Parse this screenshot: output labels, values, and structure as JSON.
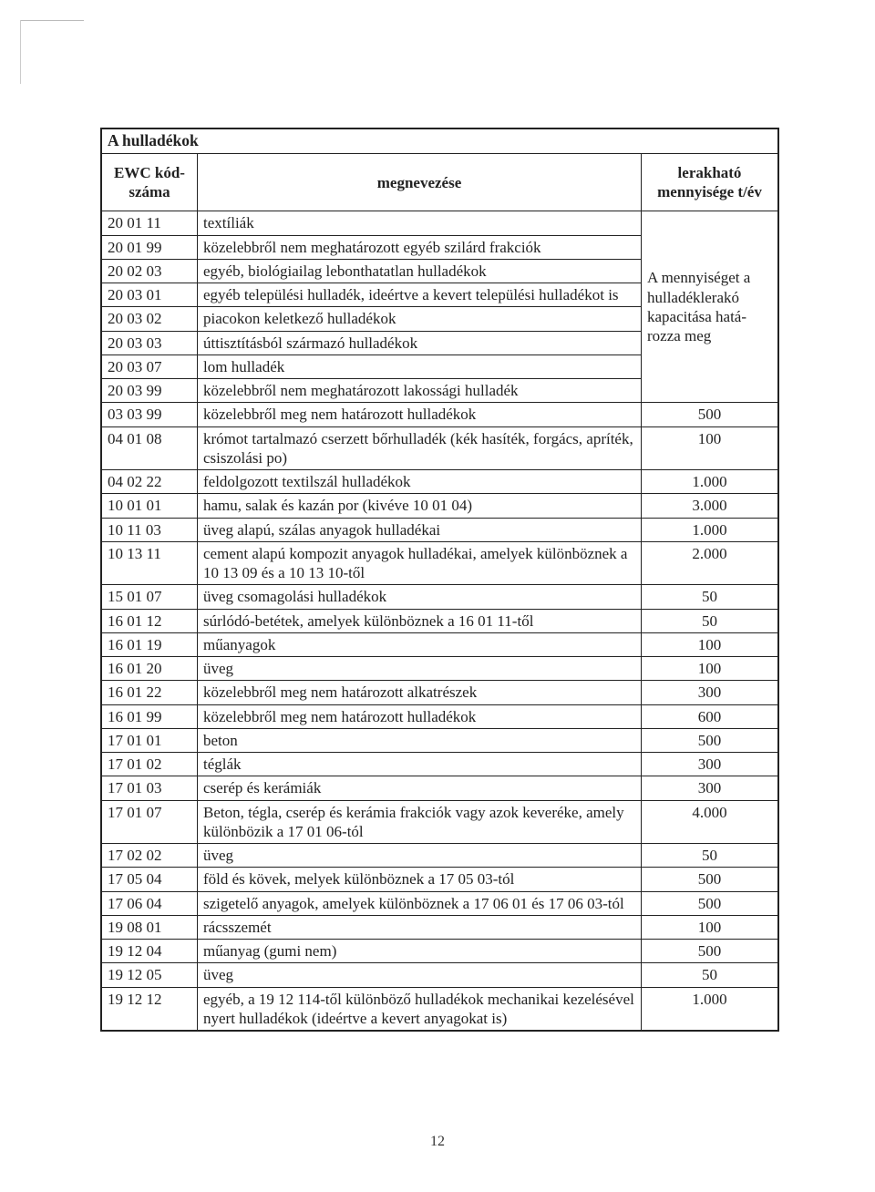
{
  "page_number": "12",
  "title": "A hulladékok",
  "headers": {
    "col1_line1": "EWC kód-",
    "col1_line2": "száma",
    "col2": "megnevezése",
    "col3_line1": "lerakható",
    "col3_line2": "mennyisége t/év"
  },
  "capacity_note": {
    "l1": "A mennyiséget a",
    "l2": "hulladéklerakó",
    "l3": "kapacitása hatá-",
    "l4": "rozza meg"
  },
  "top_rows": [
    {
      "code": "20 01 11",
      "name": "textíliák"
    },
    {
      "code": "20 01 99",
      "name": "közelebbről nem meghatározott egyéb szilárd frakciók"
    },
    {
      "code": "20 02 03",
      "name": "egyéb, biológiailag lebonthatatlan hulladékok"
    },
    {
      "code": "20 03 01",
      "name": "egyéb települési hulladék, ideértve a kevert települési hulladékot is"
    },
    {
      "code": "20 03 02",
      "name": "piacokon keletkező hulladékok"
    },
    {
      "code": "20 03 03",
      "name": "úttisztításból származó hulladékok"
    },
    {
      "code": "20 03 07",
      "name": "lom hulladék"
    },
    {
      "code": "20 03 99",
      "name": "közelebbről nem meghatározott lakossági hulladék"
    }
  ],
  "rows": [
    {
      "code": "03 03 99",
      "name": "közelebbről meg nem határozott hulladékok",
      "val": "500"
    },
    {
      "code": "04 01 08",
      "name": "krómot tartalmazó cserzett bőrhulladék (kék hasíték, forgács, apríték, csiszolási po)",
      "val": "100"
    },
    {
      "code": "04 02 22",
      "name": "feldolgozott textilszál hulladékok",
      "val": "1.000"
    },
    {
      "code": "10 01 01",
      "name": "hamu, salak és kazán por (kivéve 10 01 04)",
      "val": "3.000"
    },
    {
      "code": "10 11 03",
      "name": "üveg alapú, szálas anyagok hulladékai",
      "val": "1.000"
    },
    {
      "code": "10 13 11",
      "name": "cement alapú kompozit anyagok hulladékai, amelyek különböznek a 10 13 09 és a 10 13 10-től",
      "val": "2.000"
    },
    {
      "code": "15 01 07",
      "name": "üveg csomagolási hulladékok",
      "val": "50"
    },
    {
      "code": "16 01 12",
      "name": "súrlódó-betétek, amelyek különböznek a 16 01 11-től",
      "val": "50"
    },
    {
      "code": "16 01 19",
      "name": "műanyagok",
      "val": "100"
    },
    {
      "code": "16 01 20",
      "name": "üveg",
      "val": "100"
    },
    {
      "code": "16 01 22",
      "name": "közelebbről meg nem határozott alkatrészek",
      "val": "300"
    },
    {
      "code": "16 01 99",
      "name": "közelebbről meg nem határozott hulladékok",
      "val": "600"
    },
    {
      "code": "17 01 01",
      "name": "beton",
      "val": "500"
    },
    {
      "code": "17 01 02",
      "name": "téglák",
      "val": "300"
    },
    {
      "code": "17 01 03",
      "name": "cserép és kerámiák",
      "val": "300"
    },
    {
      "code": "17 01 07",
      "name": "Beton, tégla, cserép és kerámia frakciók vagy azok keveréke, amely különbözik a 17 01 06-tól",
      "val": "4.000"
    },
    {
      "code": "17 02 02",
      "name": "üveg",
      "val": "50"
    },
    {
      "code": "17 05 04",
      "name": "föld és kövek, melyek különböznek a 17 05 03-tól",
      "val": "500"
    },
    {
      "code": "17 06 04",
      "name": "szigetelő anyagok, amelyek különböznek a 17 06 01 és 17 06 03-tól",
      "val": "500"
    },
    {
      "code": "19 08 01",
      "name": "rácsszemét",
      "val": "100"
    },
    {
      "code": "19 12 04",
      "name": "műanyag (gumi nem)",
      "val": "500"
    },
    {
      "code": "19 12 05",
      "name": "üveg",
      "val": "50"
    },
    {
      "code": "19 12 12",
      "name": "egyéb, a 19 12 114-től különböző hulladékok mechanikai kezelésével nyert hulladékok (ideértve a kevert anyagokat is)",
      "val": "1.000"
    }
  ]
}
